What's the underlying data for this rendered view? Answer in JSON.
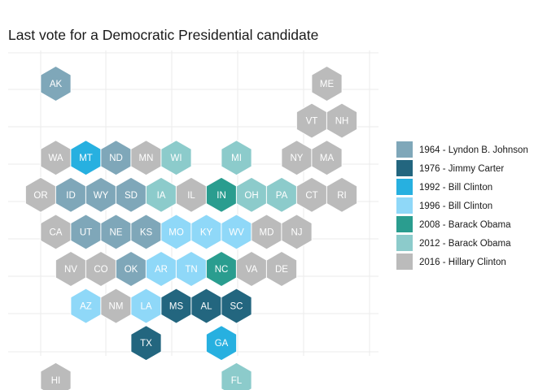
{
  "chart_data": {
    "type": "hex-tile-map",
    "title": "Last vote for a Democratic Presidential candidate",
    "legend": [
      {
        "key": "1964",
        "label": "1964 - Lyndon B. Johnson",
        "color": "#7fa7b9"
      },
      {
        "key": "1976",
        "label": "1976 - Jimmy Carter",
        "color": "#23667f"
      },
      {
        "key": "1992",
        "label": "1992 - Bill Clinton",
        "color": "#27b0e0"
      },
      {
        "key": "1996",
        "label": "1996 - Bill Clinton",
        "color": "#8fd8f8"
      },
      {
        "key": "2008",
        "label": "2008 - Barack Obama",
        "color": "#2a9d8f"
      },
      {
        "key": "2012",
        "label": "2012 - Barack Obama",
        "color": "#8ccbcb"
      },
      {
        "key": "2016",
        "label": "2016 - Hillary Clinton",
        "color": "#bbbbbb"
      }
    ],
    "states": [
      {
        "abbr": "AK",
        "col": 0.5,
        "row": 0,
        "year": "1964"
      },
      {
        "abbr": "ME",
        "col": 9.5,
        "row": 0,
        "year": "2016"
      },
      {
        "abbr": "VT",
        "col": 9,
        "row": 1,
        "year": "2016"
      },
      {
        "abbr": "NH",
        "col": 10,
        "row": 1,
        "year": "2016"
      },
      {
        "abbr": "WA",
        "col": 0.5,
        "row": 2,
        "year": "2016"
      },
      {
        "abbr": "MT",
        "col": 1.5,
        "row": 2,
        "year": "1992"
      },
      {
        "abbr": "ND",
        "col": 2.5,
        "row": 2,
        "year": "1964"
      },
      {
        "abbr": "MN",
        "col": 3.5,
        "row": 2,
        "year": "2016"
      },
      {
        "abbr": "WI",
        "col": 4.5,
        "row": 2,
        "year": "2012"
      },
      {
        "abbr": "MI",
        "col": 6.5,
        "row": 2,
        "year": "2012"
      },
      {
        "abbr": "NY",
        "col": 8.5,
        "row": 2,
        "year": "2016"
      },
      {
        "abbr": "MA",
        "col": 9.5,
        "row": 2,
        "year": "2016"
      },
      {
        "abbr": "OR",
        "col": 0,
        "row": 3,
        "year": "2016"
      },
      {
        "abbr": "ID",
        "col": 1,
        "row": 3,
        "year": "1964"
      },
      {
        "abbr": "WY",
        "col": 2,
        "row": 3,
        "year": "1964"
      },
      {
        "abbr": "SD",
        "col": 3,
        "row": 3,
        "year": "1964"
      },
      {
        "abbr": "IA",
        "col": 4,
        "row": 3,
        "year": "2012"
      },
      {
        "abbr": "IL",
        "col": 5,
        "row": 3,
        "year": "2016"
      },
      {
        "abbr": "IN",
        "col": 6,
        "row": 3,
        "year": "2008"
      },
      {
        "abbr": "OH",
        "col": 7,
        "row": 3,
        "year": "2012"
      },
      {
        "abbr": "PA",
        "col": 8,
        "row": 3,
        "year": "2012"
      },
      {
        "abbr": "CT",
        "col": 9,
        "row": 3,
        "year": "2016"
      },
      {
        "abbr": "RI",
        "col": 10,
        "row": 3,
        "year": "2016"
      },
      {
        "abbr": "CA",
        "col": 0.5,
        "row": 4,
        "year": "2016"
      },
      {
        "abbr": "UT",
        "col": 1.5,
        "row": 4,
        "year": "1964"
      },
      {
        "abbr": "NE",
        "col": 2.5,
        "row": 4,
        "year": "1964"
      },
      {
        "abbr": "KS",
        "col": 3.5,
        "row": 4,
        "year": "1964"
      },
      {
        "abbr": "MO",
        "col": 4.5,
        "row": 4,
        "year": "1996"
      },
      {
        "abbr": "KY",
        "col": 5.5,
        "row": 4,
        "year": "1996"
      },
      {
        "abbr": "WV",
        "col": 6.5,
        "row": 4,
        "year": "1996"
      },
      {
        "abbr": "MD",
        "col": 7.5,
        "row": 4,
        "year": "2016"
      },
      {
        "abbr": "NJ",
        "col": 8.5,
        "row": 4,
        "year": "2016"
      },
      {
        "abbr": "NV",
        "col": 1,
        "row": 5,
        "year": "2016"
      },
      {
        "abbr": "CO",
        "col": 2,
        "row": 5,
        "year": "2016"
      },
      {
        "abbr": "OK",
        "col": 3,
        "row": 5,
        "year": "1964"
      },
      {
        "abbr": "AR",
        "col": 4,
        "row": 5,
        "year": "1996"
      },
      {
        "abbr": "TN",
        "col": 5,
        "row": 5,
        "year": "1996"
      },
      {
        "abbr": "NC",
        "col": 6,
        "row": 5,
        "year": "2008"
      },
      {
        "abbr": "VA",
        "col": 7,
        "row": 5,
        "year": "2016"
      },
      {
        "abbr": "DE",
        "col": 8,
        "row": 5,
        "year": "2016"
      },
      {
        "abbr": "AZ",
        "col": 1.5,
        "row": 6,
        "year": "1996"
      },
      {
        "abbr": "NM",
        "col": 2.5,
        "row": 6,
        "year": "2016"
      },
      {
        "abbr": "LA",
        "col": 3.5,
        "row": 6,
        "year": "1996"
      },
      {
        "abbr": "MS",
        "col": 4.5,
        "row": 6,
        "year": "1976"
      },
      {
        "abbr": "AL",
        "col": 5.5,
        "row": 6,
        "year": "1976"
      },
      {
        "abbr": "SC",
        "col": 6.5,
        "row": 6,
        "year": "1976"
      },
      {
        "abbr": "TX",
        "col": 3.5,
        "row": 7,
        "year": "1976"
      },
      {
        "abbr": "GA",
        "col": 6,
        "row": 7,
        "year": "1992"
      },
      {
        "abbr": "HI",
        "col": 0.5,
        "row": 8,
        "year": "2016"
      },
      {
        "abbr": "FL",
        "col": 6.5,
        "row": 8,
        "year": "2012"
      }
    ],
    "grid": true,
    "legend_position": "right",
    "gridline_color": "#ebebeb",
    "hex_stroke": "#ffffff",
    "label_color": "#ffffff"
  }
}
